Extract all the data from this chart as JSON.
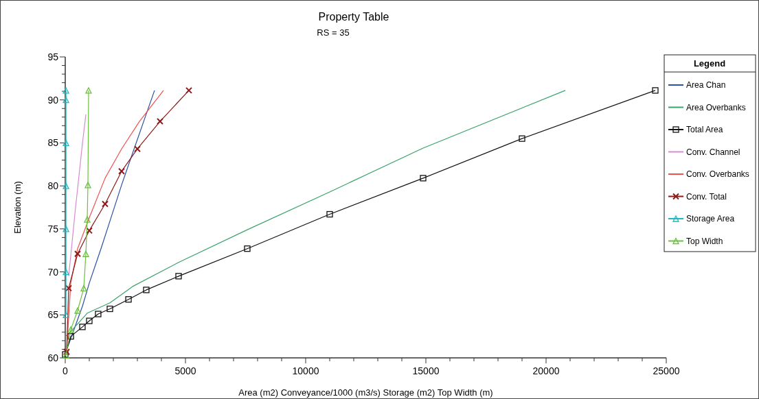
{
  "chart_data": {
    "type": "line",
    "title": "Property Table",
    "subtitle": "RS = 35",
    "xlabel": "Area (m2)  Conveyance/1000 (m3/s)  Storage (m2)  Top Width (m)",
    "ylabel": "Elevation (m)",
    "legend_title": "Legend",
    "legend": "right",
    "grid": false,
    "xlim": [
      0,
      25000
    ],
    "xticks": [
      0,
      {
        "value": 1000,
        "label": null
      },
      {
        "value": 2000,
        "label": null
      },
      {
        "value": 3000,
        "label": null
      },
      {
        "value": 4000,
        "label": null
      },
      5000,
      {
        "value": 6000,
        "label": null
      },
      {
        "value": 7000,
        "label": null
      },
      {
        "value": 8000,
        "label": null
      },
      {
        "value": 9000,
        "label": null
      },
      10000,
      {
        "value": 11000,
        "label": null
      },
      {
        "value": 12000,
        "label": null
      },
      {
        "value": 13000,
        "label": null
      },
      {
        "value": 14000,
        "label": null
      },
      15000,
      {
        "value": 16000,
        "label": null
      },
      {
        "value": 17000,
        "label": null
      },
      {
        "value": 18000,
        "label": null
      },
      {
        "value": 19000,
        "label": null
      },
      20000,
      {
        "value": 21000,
        "label": null
      },
      {
        "value": 22000,
        "label": null
      },
      {
        "value": 23000,
        "label": null
      },
      {
        "value": 24000,
        "label": null
      },
      25000
    ],
    "ylim": [
      60,
      95
    ],
    "yticks": [
      60,
      {
        "value": 61,
        "label": null
      },
      {
        "value": 62,
        "label": null
      },
      {
        "value": 63,
        "label": null
      },
      {
        "value": 64,
        "label": null
      },
      65,
      {
        "value": 66,
        "label": null
      },
      {
        "value": 67,
        "label": null
      },
      {
        "value": 68,
        "label": null
      },
      {
        "value": 69,
        "label": null
      },
      70,
      {
        "value": 71,
        "label": null
      },
      {
        "value": 72,
        "label": null
      },
      {
        "value": 73,
        "label": null
      },
      {
        "value": 74,
        "label": null
      },
      75,
      {
        "value": 76,
        "label": null
      },
      {
        "value": 77,
        "label": null
      },
      {
        "value": 78,
        "label": null
      },
      {
        "value": 79,
        "label": null
      },
      80,
      {
        "value": 81,
        "label": null
      },
      {
        "value": 82,
        "label": null
      },
      {
        "value": 83,
        "label": null
      },
      {
        "value": 84,
        "label": null
      },
      85,
      {
        "value": 86,
        "label": null
      },
      {
        "value": 87,
        "label": null
      },
      {
        "value": 88,
        "label": null
      },
      {
        "value": 89,
        "label": null
      },
      90,
      {
        "value": 91,
        "label": null
      },
      {
        "value": 92,
        "label": null
      },
      {
        "value": 93,
        "label": null
      },
      {
        "value": 94,
        "label": null
      },
      95
    ],
    "series": [
      {
        "name": "Area Chan",
        "color": "#2b4ea8",
        "marker": "none",
        "x": [
          30,
          714,
          1000,
          1486,
          1857,
          2343,
          2800,
          3200,
          3714
        ],
        "values": [
          60.7,
          66,
          68.7,
          72.7,
          75.9,
          80.1,
          83.8,
          87,
          91.1
        ]
      },
      {
        "name": "Area Overbanks",
        "color": "#3aa36a",
        "marker": "none",
        "x": [
          0,
          143,
          914,
          1857,
          2800,
          4714,
          7571,
          11000,
          14886,
          20800
        ],
        "values": [
          62.5,
          62.8,
          65.2,
          66.4,
          68.3,
          71.1,
          74.9,
          79.3,
          84.4,
          91.1
        ]
      },
      {
        "name": "Total Area",
        "color": "#111111",
        "marker": "square",
        "x": [
          0,
          230,
          714,
          1000,
          1370,
          1857,
          2630,
          3370,
          4714,
          7571,
          11000,
          14886,
          19000,
          24543
        ],
        "values": [
          60.4,
          62.5,
          63.6,
          64.3,
          65.1,
          65.7,
          66.8,
          67.9,
          69.5,
          72.7,
          76.7,
          80.9,
          85.5,
          91.1
        ]
      },
      {
        "name": "Conv. Channel",
        "color": "#d98ad0",
        "marker": "none",
        "x": [
          143,
          429,
          714,
          857
        ],
        "values": [
          69.5,
          77.5,
          84.9,
          88.3
        ]
      },
      {
        "name": "Conv. Overbanks",
        "color": "#f05050",
        "marker": "none",
        "x": [
          57,
          229,
          514,
          1000,
          1657,
          2343,
          3086,
          4086
        ],
        "values": [
          60.7,
          68.7,
          72.7,
          76.3,
          80.9,
          84.3,
          87.5,
          91.1
        ]
      },
      {
        "name": "Conv. Total",
        "color": "#8b1a1a",
        "marker": "cross",
        "x": [
          57,
          143,
          514,
          1000,
          1657,
          2343,
          3000,
          3943,
          5143
        ],
        "values": [
          60.7,
          68.1,
          72.1,
          74.8,
          77.9,
          81.7,
          84.3,
          87.5,
          91.1
        ]
      },
      {
        "name": "Storage Area",
        "color": "#1fb8c0",
        "marker": "triangle",
        "x": [
          30,
          30,
          30,
          30,
          30,
          30,
          30
        ],
        "values": [
          65,
          70,
          75,
          80,
          85,
          90,
          91.1
        ]
      },
      {
        "name": "Top Width",
        "color": "#6cc040",
        "marker": "triangle",
        "x": [
          29,
          229,
          514,
          771,
          857,
          914,
          943,
          971
        ],
        "values": [
          60.3,
          63.3,
          65.5,
          68.1,
          72.1,
          76.1,
          80.1,
          91.1
        ]
      }
    ]
  }
}
